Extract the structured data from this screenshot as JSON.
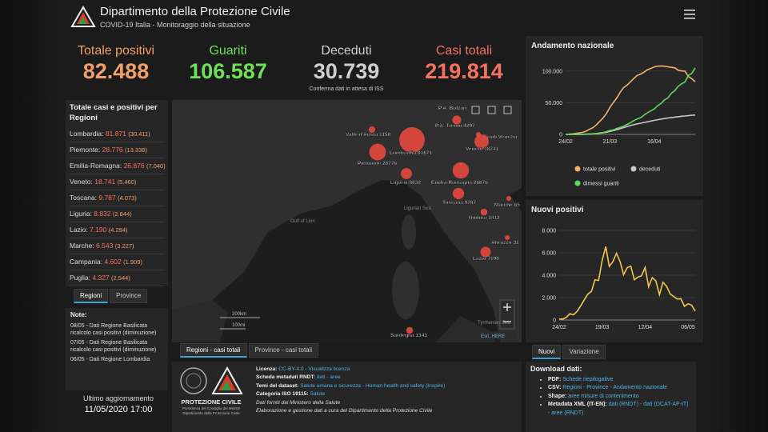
{
  "header": {
    "title": "Dipartimento della Protezione Civile",
    "subtitle": "COVID-19 Italia - Monitoraggio della situazione"
  },
  "stats": [
    {
      "label": "Totale positivi",
      "value": "82.488",
      "color": "#f2a06a"
    },
    {
      "label": "Guariti",
      "value": "106.587",
      "color": "#6ee05a"
    },
    {
      "label": "Deceduti",
      "value": "30.739",
      "color": "#d0d0d0",
      "note": "Conferma dati in attesa di ISS"
    },
    {
      "label": "Casi totali",
      "value": "219.814",
      "color": "#f2735f"
    }
  ],
  "regions_panel": {
    "title": "Totale casi e positivi per Regioni",
    "rows": [
      {
        "name": "Lombardia:",
        "total": "81.871",
        "positive": "(30.411)"
      },
      {
        "name": "Piemonte:",
        "total": "28.776",
        "positive": "(13.338)"
      },
      {
        "name": "Emilia-Romagna:",
        "total": "26.876",
        "positive": "(7.040)"
      },
      {
        "name": "Veneto:",
        "total": "18.741",
        "positive": "(5.460)"
      },
      {
        "name": "Toscana:",
        "total": "9.787",
        "positive": "(4.073)"
      },
      {
        "name": "Liguria:",
        "total": "8.832",
        "positive": "(2.844)"
      },
      {
        "name": "Lazio:",
        "total": "7.190",
        "positive": "(4.294)"
      },
      {
        "name": "Marche:",
        "total": "6.543",
        "positive": "(3.227)"
      },
      {
        "name": "Campania:",
        "total": "4.602",
        "positive": "(1.909)"
      },
      {
        "name": "Puglia:",
        "total": "4.327",
        "positive": "(2.544)"
      }
    ],
    "tabs": [
      "Regioni",
      "Province"
    ]
  },
  "notes": {
    "title": "Note:",
    "items": [
      "08/05 - Dati Regione Basilicata ricalcolo casi positivi (diminuzione)",
      "07/05 - Dati Regione Basilicata ricalcolo casi positivi (diminuzione)",
      "06/05 - Dati Regione Lombardia"
    ]
  },
  "update": {
    "label": "Ultimo aggiornamento",
    "datetime": "11/05/2020 17:00"
  },
  "map": {
    "places": [
      {
        "label": "P.A. Bolzan"
      },
      {
        "name": "P.A. Trento",
        "value": 4297
      },
      {
        "name": "Valle d'Aosta",
        "value": 1158
      },
      {
        "name": "Lombardia",
        "value": 81871
      },
      {
        "label": "Friuli Venezia"
      },
      {
        "name": "Veneto",
        "value": 18741
      },
      {
        "name": "Piemonte",
        "value": 28776
      },
      {
        "name": "Liguria",
        "value": 8832
      },
      {
        "name": "Emilia-Romagna",
        "value": 26876
      },
      {
        "name": "Toscana",
        "value": 9787
      },
      {
        "label": "Marche 65"
      },
      {
        "name": "Umbria",
        "value": 1412
      },
      {
        "label": "Abruzzo 31"
      },
      {
        "name": "Lazio",
        "value": 7190
      },
      {
        "name": "Sardegna",
        "value": 1343
      }
    ],
    "seas": [
      "Gulf of Lion",
      "Ligurian Sea",
      "Tyrrhenian Sea"
    ],
    "scale": [
      "200km",
      "100mi"
    ],
    "attribution": "Esri, HERE",
    "tabs": [
      "Regioni - casi totali",
      "Province - casi totali"
    ]
  },
  "info": {
    "logo": "PROTEZIONE CIVILE",
    "logo_sub": "Presidenza del Consiglio dei Ministri Dipartimento della Protezione Civile",
    "lines": [
      {
        "label": "Licenza:",
        "value": "CC-BY-4.0 - Visualizza licenza"
      },
      {
        "label": "Scheda metadati RNDT:",
        "value": "dati - aree"
      },
      {
        "label": "Temi del dataset:",
        "value": "Salute umana e sicurezza - Human health and safety (Inspire)"
      },
      {
        "label": "Categoria ISO 19115:",
        "value": "Salute"
      },
      {
        "text": "Dati forniti dal Ministero della Salute"
      },
      {
        "text": "Elaborazione e gestione dati a cura del Dipartimento della Protezione Civile"
      }
    ]
  },
  "download": {
    "title": "Download dati:",
    "items": [
      {
        "label": "PDF:",
        "value": "Schede riepilogative"
      },
      {
        "label": "CSV:",
        "value": "Regioni - Province - Andamento nazionale"
      },
      {
        "label": "Shape:",
        "value": "aree misure di contenimento"
      },
      {
        "label": "Metadata XML (IT-EN):",
        "value": "dati (RNDT) - dati (DCAT-AP-IT) - aree (RNDT)"
      }
    ]
  },
  "chart_tabs": [
    "Nuovi",
    "Variazione"
  ],
  "chart_data": [
    {
      "type": "line",
      "title": "Andamento nazionale",
      "categories": [
        "24/02",
        null,
        null,
        null,
        null,
        null,
        null,
        null,
        null,
        null,
        null,
        null,
        null,
        "21/03",
        null,
        null,
        null,
        null,
        null,
        null,
        null,
        null,
        null,
        null,
        null,
        null,
        "16/04",
        null,
        null,
        null,
        null,
        null,
        null,
        null,
        null,
        null,
        null,
        null,
        null
      ],
      "series": [
        {
          "name": "totale positivi",
          "color": "#f5b06a",
          "values": [
            221,
            400,
            800,
            1577,
            2263,
            3296,
            5061,
            7985,
            10590,
            14955,
            20603,
            26062,
            33190,
            42681,
            50418,
            57521,
            66414,
            73880,
            77635,
            83049,
            88274,
            93187,
            95262,
            98273,
            102253,
            104291,
            106607,
            107771,
            108237,
            107699,
            106848,
            105847,
            105205,
            101551,
            100179,
            99980,
            91528,
            87961,
            83324
          ]
        },
        {
          "name": "deceduti",
          "color": "#c8c8c8",
          "values": [
            7,
            12,
            21,
            34,
            79,
            148,
            233,
            463,
            827,
            1266,
            1809,
            2503,
            3405,
            4825,
            6077,
            7503,
            9134,
            10779,
            12428,
            13915,
            15362,
            16523,
            17669,
            18849,
            19899,
            21067,
            22170,
            23227,
            24114,
            25085,
            25969,
            26644,
            27359,
            27967,
            28710,
            29079,
            29684,
            30201,
            30560
          ]
        },
        {
          "name": "dimessi guariti",
          "color": "#5fd85a",
          "values": [
            1,
            3,
            46,
            83,
            160,
            276,
            589,
            724,
            1045,
            1439,
            2335,
            2941,
            4440,
            6072,
            7024,
            9362,
            10950,
            13030,
            15729,
            18278,
            21815,
            24392,
            26491,
            30455,
            34211,
            37130,
            40164,
            45338,
            48877,
            54543,
            57576,
            64928,
            68941,
            75945,
            79914,
            82879,
            93245,
            96276,
            105186
          ]
        }
      ],
      "ylim": [
        0,
        115000
      ],
      "yticks": [
        0,
        {
          "value": 50000,
          "label": "50.000"
        },
        {
          "value": 100000,
          "label": "100.000"
        }
      ],
      "grid": true,
      "legend": "bottom"
    },
    {
      "type": "line",
      "title": "Nuovi positivi",
      "categories": [
        "24/02",
        null,
        null,
        null,
        null,
        null,
        null,
        null,
        null,
        null,
        null,
        null,
        "19/03",
        null,
        null,
        null,
        null,
        null,
        null,
        null,
        null,
        null,
        null,
        null,
        "12/04",
        null,
        null,
        null,
        null,
        null,
        null,
        null,
        null,
        null,
        null,
        null,
        "06/05",
        null,
        null
      ],
      "values": [
        93,
        78,
        238,
        566,
        466,
        769,
        1247,
        1797,
        2313,
        2547,
        3590,
        3526,
        5322,
        6557,
        4789,
        5210,
        5959,
        5217,
        4053,
        4668,
        4805,
        3599,
        3836,
        3951,
        4694,
        2972,
        3786,
        3491,
        2256,
        3370,
        3021,
        2324,
        2091,
        1872,
        1900,
        1221,
        1444,
        1327,
        802
      ],
      "color": "#f3c64a",
      "ylim": [
        0,
        8000
      ],
      "yticks": [
        0,
        {
          "value": 2000,
          "label": "2.000"
        },
        {
          "value": 4000,
          "label": "4.000"
        },
        {
          "value": 6000,
          "label": "6.000"
        },
        {
          "value": 8000,
          "label": "8.000"
        }
      ],
      "grid": true
    }
  ]
}
